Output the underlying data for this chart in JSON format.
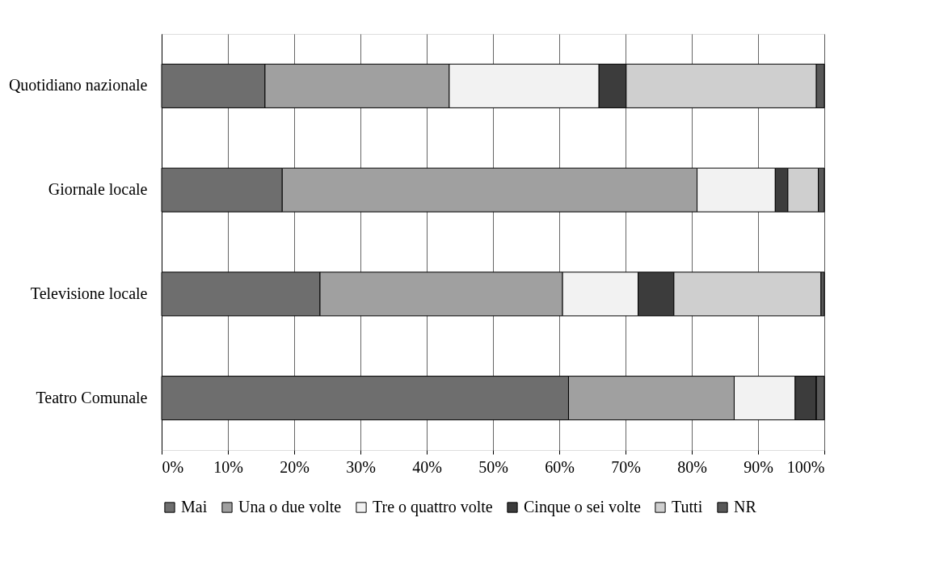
{
  "chart_data": {
    "type": "bar",
    "orientation": "horizontal",
    "stacked": true,
    "categories": [
      "Quotidiano nazionale",
      "Giornale locale",
      "Televisione locale",
      "Teatro Comunale"
    ],
    "series": [
      {
        "name": "Mai",
        "color": "#6e6e6e",
        "values": [
          15.6,
          18.2,
          23.9,
          61.4
        ]
      },
      {
        "name": "Una o due volte",
        "color": "#a0a0a0",
        "values": [
          27.8,
          62.6,
          36.6,
          25.0
        ]
      },
      {
        "name": "Tre o quattro volte",
        "color": "#f2f2f2",
        "values": [
          22.6,
          11.8,
          11.4,
          9.2
        ]
      },
      {
        "name": "Cinque o sei volte",
        "color": "#3c3c3c",
        "values": [
          4.1,
          1.9,
          5.4,
          3.2
        ]
      },
      {
        "name": "Tutti",
        "color": "#cfcfcf",
        "values": [
          28.7,
          4.6,
          22.2,
          0
        ]
      },
      {
        "name": "NR",
        "color": "#585858",
        "values": [
          1.2,
          0.9,
          0.5,
          1.2
        ]
      }
    ],
    "xlim": [
      0,
      100
    ],
    "xticks": [
      {
        "value": 0,
        "label": "0%"
      },
      {
        "value": 10,
        "label": "10%"
      },
      {
        "value": 20,
        "label": "20%"
      },
      {
        "value": 30,
        "label": "30%"
      },
      {
        "value": 40,
        "label": "40%"
      },
      {
        "value": 50,
        "label": "50%"
      },
      {
        "value": 60,
        "label": "60%"
      },
      {
        "value": 70,
        "label": "70%"
      },
      {
        "value": 80,
        "label": "80%"
      },
      {
        "value": 90,
        "label": "90%"
      },
      {
        "value": 100,
        "label": "100%"
      }
    ],
    "grid": "x",
    "legend": "bottom"
  }
}
